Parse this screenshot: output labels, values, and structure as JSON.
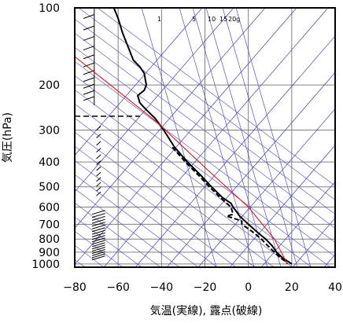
{
  "chart_data": {
    "type": "line",
    "title": "",
    "xlabel": "気温(実線), 露点(破線)",
    "ylabel": "気圧(hPa)",
    "xlim": [
      -80,
      40
    ],
    "ylim": [
      1030,
      100
    ],
    "y_scale": "log",
    "grid": true,
    "x_ticks": [
      "−80",
      "−60",
      "−40",
      "−20",
      "0",
      "20",
      "40"
    ],
    "y_ticks": [
      "100",
      "200",
      "300",
      "400",
      "500",
      "600",
      "700",
      "800",
      "900",
      "1000"
    ],
    "mixing_ratio_labels": [
      "1",
      "5",
      "10",
      "15",
      "20g"
    ],
    "series": [
      {
        "color": "#000000",
        "style": "solid",
        "points": [
          [
            -62,
            100
          ],
          [
            -60,
            110
          ],
          [
            -58,
            125
          ],
          [
            -55,
            145
          ],
          [
            -53,
            160
          ],
          [
            -50,
            170
          ],
          [
            -48,
            180
          ],
          [
            -47,
            200
          ],
          [
            -48,
            210
          ],
          [
            -51,
            220
          ],
          [
            -50,
            235
          ],
          [
            -47,
            250
          ],
          [
            -43,
            270
          ],
          [
            -39,
            300
          ],
          [
            -34,
            350
          ],
          [
            -28,
            400
          ],
          [
            -22,
            450
          ],
          [
            -17,
            500
          ],
          [
            -12,
            550
          ],
          [
            -8,
            580
          ],
          [
            -7,
            600
          ],
          [
            -4,
            650
          ],
          [
            0,
            700
          ],
          [
            4,
            750
          ],
          [
            8,
            800
          ],
          [
            11,
            850
          ],
          [
            13,
            900
          ],
          [
            16,
            950
          ],
          [
            18,
            975
          ],
          [
            20,
            1000
          ]
        ]
      },
      {
        "color": "#000000",
        "style": "dashed",
        "points": [
          [
            -35,
            350
          ],
          [
            -29,
            400
          ],
          [
            -23,
            450
          ],
          [
            -18,
            500
          ],
          [
            -13,
            550
          ],
          [
            -10,
            580
          ],
          [
            -8,
            600
          ],
          [
            -7,
            640
          ],
          [
            -10,
            650
          ],
          [
            -3,
            680
          ],
          [
            -3,
            700
          ],
          [
            2,
            750
          ],
          [
            6,
            800
          ],
          [
            9,
            850
          ],
          [
            12,
            900
          ],
          [
            15,
            950
          ],
          [
            17,
            975
          ],
          [
            18,
            1000
          ]
        ]
      },
      {
        "color": "#ff0000",
        "style": "solid",
        "points": [
          [
            -80,
            155
          ],
          [
            -42,
            280
          ],
          [
            -20,
            420
          ],
          [
            0,
            600
          ],
          [
            12,
            800
          ],
          [
            18,
            1000
          ]
        ]
      }
    ],
    "inversion_marker_hpa": 265
  }
}
